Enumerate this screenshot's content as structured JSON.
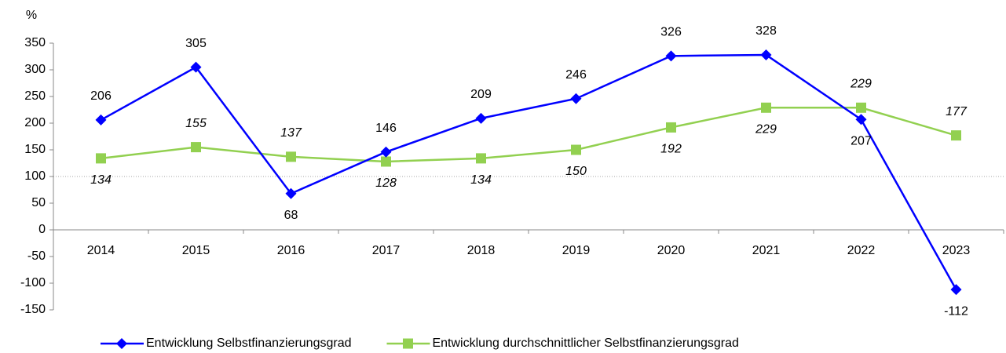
{
  "chart_data": {
    "type": "line",
    "y_label": "%",
    "categories": [
      "2014",
      "2015",
      "2016",
      "2017",
      "2018",
      "2019",
      "2020",
      "2021",
      "2022",
      "2023"
    ],
    "series": [
      {
        "name": "Entwicklung Selbstfinanzierungsgrad",
        "color": "#0000ff",
        "marker": "diamond",
        "values": [
          206,
          305,
          68,
          146,
          209,
          246,
          326,
          328,
          207,
          -112
        ]
      },
      {
        "name": "Entwicklung durchschnittlicher Selbstfinanzierungsgrad",
        "color": "#92d050",
        "marker": "square",
        "values": [
          134,
          155,
          137,
          128,
          134,
          150,
          192,
          229,
          229,
          177
        ]
      }
    ],
    "ylim": [
      -150,
      350
    ],
    "yticks": [
      -150,
      -100,
      -50,
      0,
      50,
      100,
      150,
      200,
      250,
      300,
      350
    ],
    "reference_line": 100,
    "legend": "bottom"
  }
}
